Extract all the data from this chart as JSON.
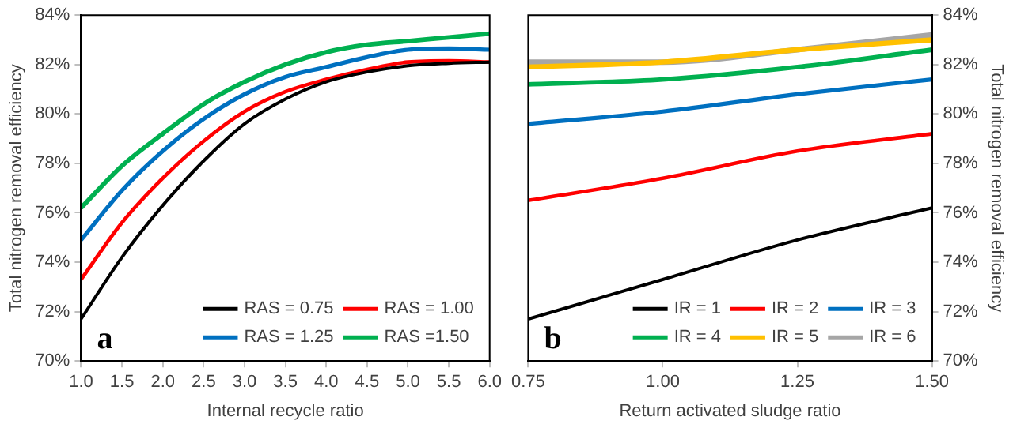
{
  "chart_data": [
    {
      "type": "line",
      "xlabel": "Internal recycle ratio",
      "ylabel": "Total nitrogen removal efficiency",
      "annotations": [
        "a"
      ],
      "x": [
        1,
        1.5,
        2,
        2.5,
        3,
        3.5,
        4,
        4.5,
        5,
        5.5,
        6
      ],
      "xlim": [
        1,
        6
      ],
      "xticks": [
        {
          "value": 1,
          "label": "1.0"
        },
        {
          "value": 1.5,
          "label": "1.5"
        },
        {
          "value": 2,
          "label": "2.0"
        },
        {
          "value": 2.5,
          "label": "2.5"
        },
        {
          "value": 3,
          "label": "3.0"
        },
        {
          "value": 3.5,
          "label": "3.5"
        },
        {
          "value": 4,
          "label": "4.0"
        },
        {
          "value": 4.5,
          "label": "4.5"
        },
        {
          "value": 5,
          "label": "5.0"
        },
        {
          "value": 5.5,
          "label": "5.5"
        },
        {
          "value": 6,
          "label": "6.0"
        }
      ],
      "ylim": [
        70,
        84
      ],
      "yticks": [
        {
          "value": 70,
          "label": "70%"
        },
        {
          "value": 72,
          "label": "72%"
        },
        {
          "value": 74,
          "label": "74%"
        },
        {
          "value": 76,
          "label": "76%"
        },
        {
          "value": 78,
          "label": "78%"
        },
        {
          "value": 80,
          "label": "80%"
        },
        {
          "value": 82,
          "label": "82%"
        },
        {
          "value": 84,
          "label": "84%"
        }
      ],
      "legend": "bottom right",
      "grid": false,
      "marker": "none",
      "line_style": "solid",
      "series": [
        {
          "name": "RAS = 0.75",
          "color": "#000000",
          "values": [
            71.7,
            74.2,
            76.3,
            78.1,
            79.6,
            80.6,
            81.3,
            81.7,
            81.95,
            82.05,
            82.1
          ]
        },
        {
          "name": "RAS = 1.00",
          "color": "#ff0000",
          "values": [
            73.3,
            75.6,
            77.4,
            78.9,
            80.1,
            80.9,
            81.4,
            81.8,
            82.1,
            82.15,
            82.1
          ]
        },
        {
          "name": "RAS = 1.25",
          "color": "#0070c0",
          "values": [
            74.9,
            76.9,
            78.5,
            79.8,
            80.8,
            81.5,
            81.9,
            82.3,
            82.6,
            82.65,
            82.6
          ]
        },
        {
          "name": "RAS =1.50",
          "color": "#00b050",
          "values": [
            76.2,
            77.9,
            79.2,
            80.4,
            81.3,
            82.0,
            82.5,
            82.8,
            82.95,
            83.1,
            83.25
          ]
        }
      ]
    },
    {
      "type": "line",
      "xlabel": "Return activated sludge ratio",
      "y2label": "Total nitrogen removal efficiency",
      "annotations": [
        "b"
      ],
      "x": [
        0.75,
        1,
        1.25,
        1.5
      ],
      "xlim": [
        0.75,
        1.5
      ],
      "xticks": [
        0.75,
        {
          "value": 1,
          "label": "1.00"
        },
        1.25,
        {
          "value": 1.5,
          "label": "1.50"
        }
      ],
      "y2lim": [
        70,
        84
      ],
      "y2ticks": [
        {
          "value": 70,
          "label": "70%"
        },
        {
          "value": 72,
          "label": "72%"
        },
        {
          "value": 74,
          "label": "74%"
        },
        {
          "value": 76,
          "label": "76%"
        },
        {
          "value": 78,
          "label": "78%"
        },
        {
          "value": 80,
          "label": "80%"
        },
        {
          "value": 82,
          "label": "82%"
        },
        {
          "value": 84,
          "label": "84%"
        }
      ],
      "legend": "bottom right",
      "grid": false,
      "marker": "none",
      "line_style": "solid",
      "series": [
        {
          "name": "IR = 1",
          "color": "#000000",
          "axis": "y2",
          "values": [
            71.7,
            73.3,
            74.9,
            76.2
          ]
        },
        {
          "name": "IR = 2",
          "color": "#ff0000",
          "axis": "y2",
          "values": [
            76.5,
            77.4,
            78.5,
            79.2
          ]
        },
        {
          "name": "IR = 3",
          "color": "#0070c0",
          "axis": "y2",
          "values": [
            79.6,
            80.1,
            80.8,
            81.4
          ]
        },
        {
          "name": "IR = 4",
          "color": "#00b050",
          "axis": "y2",
          "values": [
            81.2,
            81.4,
            81.9,
            82.6
          ]
        },
        {
          "name": "IR = 5",
          "color": "#ffc000",
          "axis": "y2",
          "values": [
            81.9,
            82.1,
            82.6,
            83.0
          ]
        },
        {
          "name": "IR = 6",
          "color": "#a6a6a6",
          "axis": "y2",
          "values": [
            82.1,
            82.1,
            82.6,
            83.2
          ]
        }
      ]
    }
  ]
}
